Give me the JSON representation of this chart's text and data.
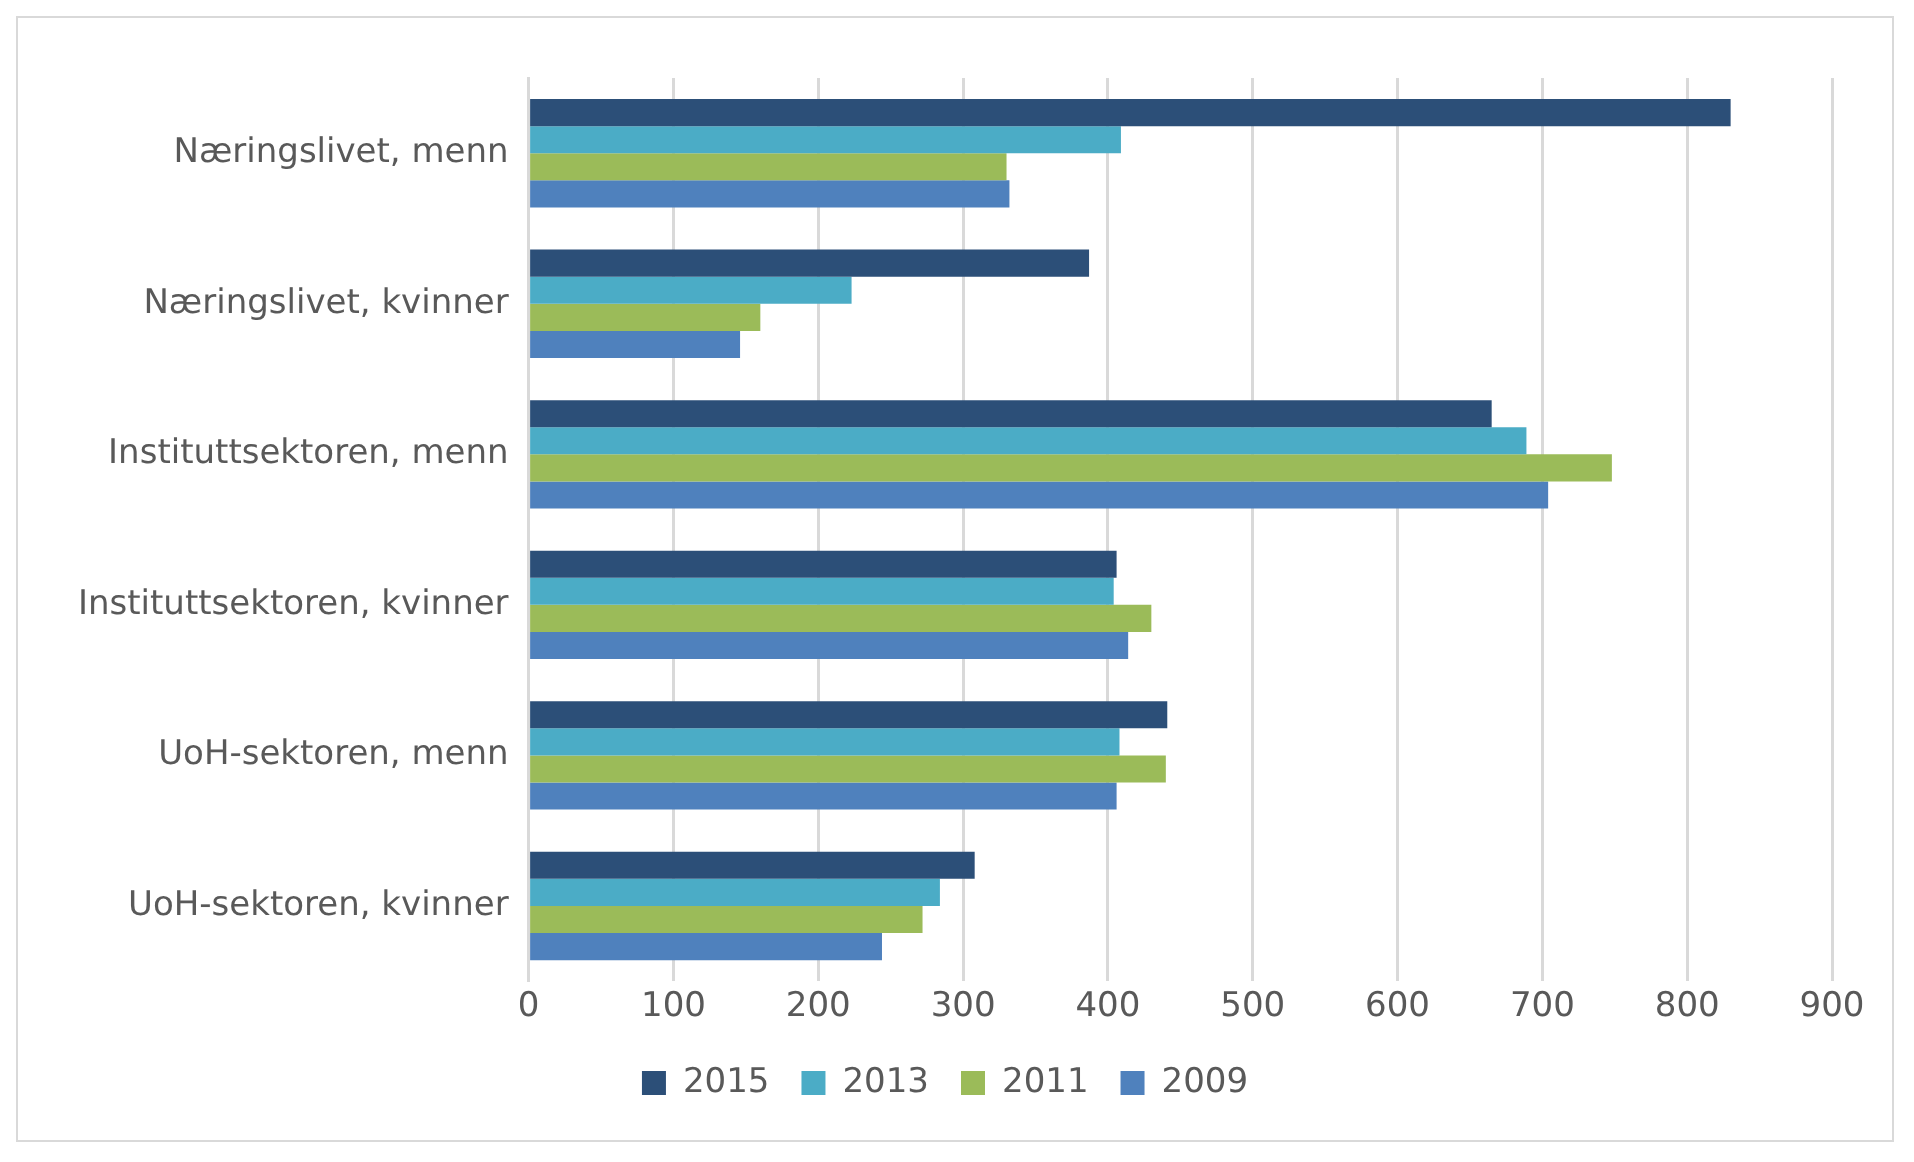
{
  "chart_data": {
    "type": "bar",
    "orientation": "horizontal",
    "categories": [
      "Næringslivet, menn",
      "Næringslivet, kvinner",
      "Instituttsektoren, menn",
      "Instituttsektoren, kvinner",
      "UoH-sektoren, menn",
      "UoH-sektoren, kvinner"
    ],
    "series": [
      {
        "name": "2015",
        "color": "#2c4f78",
        "values": [
          830,
          387,
          665,
          406,
          441,
          308
        ]
      },
      {
        "name": "2013",
        "color": "#4bacc6",
        "values": [
          409,
          223,
          689,
          404,
          408,
          284
        ]
      },
      {
        "name": "2011",
        "color": "#9bbb59",
        "values": [
          330,
          160,
          748,
          430,
          440,
          272
        ]
      },
      {
        "name": "2009",
        "color": "#4f81bd",
        "values": [
          332,
          146,
          704,
          414,
          406,
          244
        ]
      }
    ],
    "xlim": [
      0,
      900
    ],
    "xticks": [
      0,
      100,
      200,
      300,
      400,
      500,
      600,
      700,
      800,
      900
    ],
    "grid": "x",
    "legend": "bottom"
  }
}
